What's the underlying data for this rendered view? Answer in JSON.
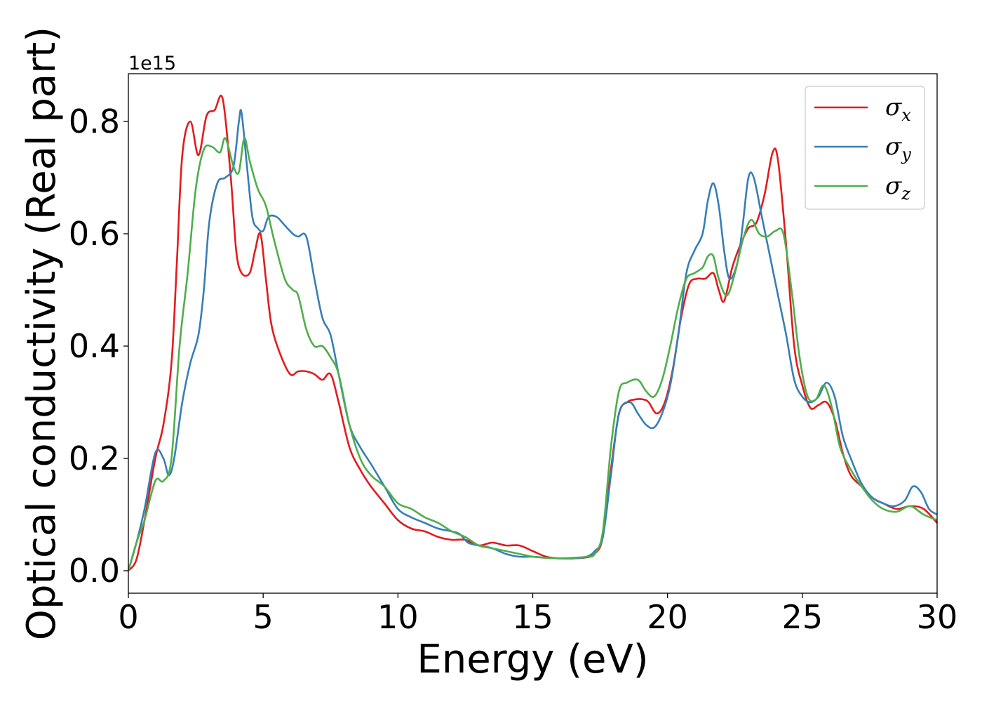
{
  "chart_data": {
    "type": "line",
    "title": "",
    "xlabel": "Energy (eV)",
    "ylabel": "Optical conductivity (Real part)",
    "y_offset_label": "1e15",
    "xlim": [
      0,
      30
    ],
    "ylim": [
      -0.04,
      0.885
    ],
    "xticks": [
      0,
      5,
      10,
      15,
      20,
      25,
      30
    ],
    "xtick_labels": [
      "0",
      "5",
      "10",
      "15",
      "20",
      "25",
      "30"
    ],
    "yticks": [
      0.0,
      0.2,
      0.4,
      0.6,
      0.8
    ],
    "ytick_labels": [
      "0.0",
      "0.2",
      "0.4",
      "0.6",
      "0.8"
    ],
    "grid": false,
    "legend_position": "top-right",
    "series": [
      {
        "name": "σx",
        "symbol": "σ",
        "subscript": "x",
        "color": "#e41a1c",
        "x": [
          0,
          0.3,
          0.6,
          1.0,
          1.3,
          1.6,
          1.8,
          2.0,
          2.3,
          2.6,
          2.9,
          3.2,
          3.5,
          3.8,
          4.0,
          4.2,
          4.5,
          4.7,
          4.9,
          5.1,
          5.3,
          5.6,
          6.0,
          6.3,
          6.6,
          6.9,
          7.2,
          7.5,
          7.8,
          8.2,
          8.6,
          9.0,
          9.5,
          10.0,
          10.5,
          11.0,
          11.5,
          12.0,
          12.5,
          13.0,
          13.5,
          14.0,
          14.5,
          15.0,
          15.5,
          16.0,
          16.5,
          17.0,
          17.3,
          17.6,
          17.9,
          18.2,
          18.5,
          18.8,
          19.1,
          19.3,
          19.6,
          19.9,
          20.2,
          20.5,
          20.8,
          21.1,
          21.4,
          21.7,
          21.9,
          22.1,
          22.4,
          22.7,
          23.0,
          23.3,
          23.6,
          23.9,
          24.1,
          24.4,
          24.7,
          25.0,
          25.3,
          25.6,
          25.9,
          26.2,
          26.5,
          26.8,
          27.2,
          27.6,
          28.0,
          28.5,
          29.0,
          29.5,
          30.0
        ],
        "y": [
          0.0,
          0.02,
          0.09,
          0.2,
          0.26,
          0.37,
          0.55,
          0.74,
          0.8,
          0.74,
          0.81,
          0.82,
          0.84,
          0.7,
          0.57,
          0.53,
          0.53,
          0.57,
          0.6,
          0.52,
          0.44,
          0.39,
          0.35,
          0.355,
          0.355,
          0.35,
          0.34,
          0.35,
          0.3,
          0.22,
          0.18,
          0.15,
          0.12,
          0.09,
          0.075,
          0.07,
          0.06,
          0.055,
          0.055,
          0.045,
          0.05,
          0.045,
          0.045,
          0.035,
          0.025,
          0.022,
          0.022,
          0.024,
          0.03,
          0.06,
          0.18,
          0.28,
          0.3,
          0.305,
          0.305,
          0.3,
          0.28,
          0.3,
          0.36,
          0.45,
          0.51,
          0.52,
          0.52,
          0.53,
          0.5,
          0.48,
          0.54,
          0.58,
          0.61,
          0.62,
          0.67,
          0.745,
          0.73,
          0.58,
          0.4,
          0.33,
          0.29,
          0.295,
          0.3,
          0.27,
          0.21,
          0.17,
          0.15,
          0.13,
          0.12,
          0.11,
          0.115,
          0.11,
          0.085
        ]
      },
      {
        "name": "σy",
        "symbol": "σ",
        "subscript": "y",
        "color": "#377eb8",
        "x": [
          0,
          0.3,
          0.6,
          1.0,
          1.3,
          1.5,
          1.7,
          2.0,
          2.3,
          2.6,
          2.8,
          3.0,
          3.3,
          3.6,
          3.9,
          4.1,
          4.2,
          4.4,
          4.6,
          4.8,
          5.0,
          5.2,
          5.5,
          5.8,
          6.1,
          6.3,
          6.6,
          6.9,
          7.2,
          7.5,
          7.8,
          8.2,
          8.6,
          9.0,
          9.5,
          10.0,
          10.5,
          11.0,
          11.5,
          12.0,
          12.3,
          12.6,
          13.0,
          13.5,
          14.0,
          14.5,
          15.0,
          15.5,
          16.0,
          16.5,
          17.0,
          17.3,
          17.6,
          17.9,
          18.2,
          18.6,
          18.9,
          19.2,
          19.5,
          19.8,
          20.1,
          20.4,
          20.7,
          21.0,
          21.3,
          21.5,
          21.7,
          21.9,
          22.1,
          22.3,
          22.6,
          22.8,
          23.0,
          23.2,
          23.5,
          23.8,
          24.1,
          24.4,
          24.7,
          25.0,
          25.3,
          25.6,
          25.9,
          26.2,
          26.5,
          26.8,
          27.2,
          27.6,
          28.0,
          28.4,
          28.8,
          29.1,
          29.4,
          29.7,
          30.0
        ],
        "y": [
          0.0,
          0.05,
          0.11,
          0.21,
          0.2,
          0.17,
          0.2,
          0.3,
          0.37,
          0.42,
          0.5,
          0.62,
          0.69,
          0.7,
          0.72,
          0.8,
          0.815,
          0.72,
          0.63,
          0.61,
          0.605,
          0.63,
          0.63,
          0.615,
          0.6,
          0.595,
          0.595,
          0.52,
          0.45,
          0.42,
          0.35,
          0.26,
          0.22,
          0.19,
          0.15,
          0.11,
          0.095,
          0.085,
          0.075,
          0.07,
          0.065,
          0.05,
          0.045,
          0.04,
          0.03,
          0.025,
          0.025,
          0.023,
          0.022,
          0.022,
          0.025,
          0.035,
          0.06,
          0.17,
          0.28,
          0.3,
          0.28,
          0.26,
          0.255,
          0.28,
          0.33,
          0.42,
          0.53,
          0.57,
          0.6,
          0.66,
          0.69,
          0.65,
          0.57,
          0.52,
          0.55,
          0.62,
          0.7,
          0.7,
          0.63,
          0.56,
          0.49,
          0.42,
          0.34,
          0.31,
          0.3,
          0.31,
          0.335,
          0.31,
          0.24,
          0.2,
          0.155,
          0.13,
          0.12,
          0.115,
          0.125,
          0.15,
          0.14,
          0.11,
          0.1
        ]
      },
      {
        "name": "σz",
        "symbol": "σ",
        "subscript": "z",
        "color": "#4daf4a",
        "x": [
          0,
          0.3,
          0.6,
          1.0,
          1.3,
          1.6,
          1.9,
          2.2,
          2.5,
          2.8,
          3.1,
          3.4,
          3.6,
          3.9,
          4.1,
          4.3,
          4.5,
          4.8,
          5.1,
          5.4,
          5.8,
          6.1,
          6.3,
          6.6,
          6.9,
          7.2,
          7.5,
          7.8,
          8.2,
          8.6,
          9.0,
          9.5,
          10.0,
          10.5,
          11.0,
          11.5,
          12.0,
          12.5,
          13.0,
          13.5,
          14.0,
          14.5,
          15.0,
          15.5,
          16.0,
          16.5,
          17.0,
          17.3,
          17.6,
          17.9,
          18.2,
          18.5,
          18.9,
          19.2,
          19.5,
          19.8,
          20.1,
          20.4,
          20.7,
          21.0,
          21.3,
          21.5,
          21.7,
          21.9,
          22.2,
          22.5,
          22.8,
          23.1,
          23.4,
          23.7,
          24.0,
          24.3,
          24.6,
          24.9,
          25.2,
          25.5,
          25.8,
          26.1,
          26.4,
          26.8,
          27.2,
          27.6,
          28.0,
          28.5,
          29.0,
          29.5,
          30.0
        ],
        "y": [
          0.0,
          0.05,
          0.09,
          0.16,
          0.16,
          0.2,
          0.4,
          0.53,
          0.68,
          0.75,
          0.755,
          0.745,
          0.77,
          0.72,
          0.71,
          0.77,
          0.73,
          0.68,
          0.65,
          0.59,
          0.52,
          0.5,
          0.49,
          0.43,
          0.4,
          0.4,
          0.38,
          0.35,
          0.26,
          0.2,
          0.17,
          0.15,
          0.12,
          0.11,
          0.095,
          0.085,
          0.07,
          0.06,
          0.045,
          0.04,
          0.035,
          0.03,
          0.025,
          0.023,
          0.022,
          0.023,
          0.025,
          0.03,
          0.07,
          0.22,
          0.32,
          0.335,
          0.34,
          0.32,
          0.31,
          0.34,
          0.4,
          0.47,
          0.52,
          0.53,
          0.54,
          0.56,
          0.56,
          0.52,
          0.49,
          0.53,
          0.59,
          0.625,
          0.6,
          0.595,
          0.605,
          0.6,
          0.5,
          0.38,
          0.31,
          0.305,
          0.33,
          0.29,
          0.22,
          0.18,
          0.15,
          0.125,
          0.11,
          0.105,
          0.115,
          0.1,
          0.09
        ]
      }
    ]
  }
}
